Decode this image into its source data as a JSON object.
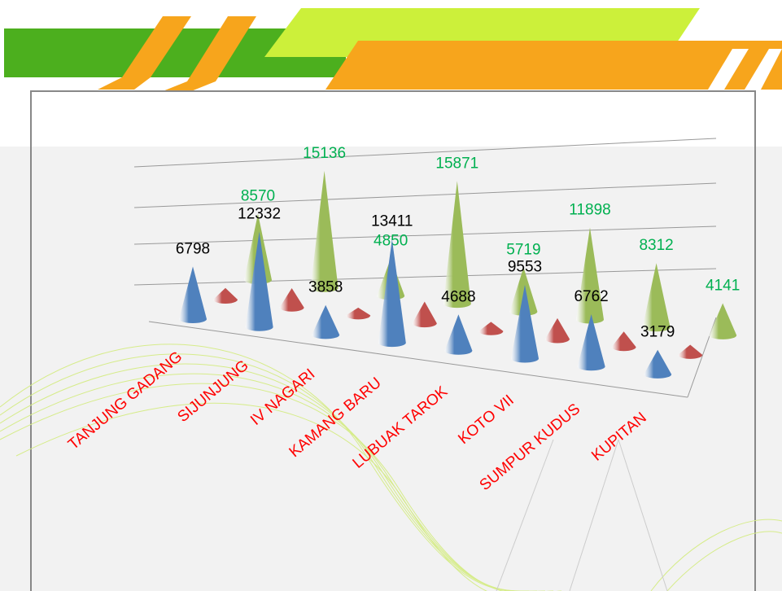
{
  "chart_data": {
    "type": "cone",
    "categories": [
      "TANJUNG GADANG",
      "SIJUNJUNG",
      "IV NAGARI",
      "KAMANG BARU",
      "LUBUAK TAROK",
      "KOTO VII",
      "SUMPUR KUDUS",
      "KUPITAN"
    ],
    "series": [
      {
        "color": "#4f81bd",
        "label_color": "#000000",
        "values": [
          6798,
          12332,
          3858,
          13411,
          4688,
          9553,
          6762,
          3179
        ]
      },
      {
        "color": "#c0504d",
        "values": [
          1500,
          2500,
          1000,
          2800,
          1200,
          2700,
          2000,
          1300
        ]
      },
      {
        "color": "#9bbb59",
        "label_color": "#00b050",
        "values": [
          8570,
          15136,
          4850,
          15871,
          5719,
          11898,
          8312,
          4141
        ]
      }
    ],
    "ylim": [
      0,
      20000
    ],
    "category_color": "#ff0000"
  }
}
